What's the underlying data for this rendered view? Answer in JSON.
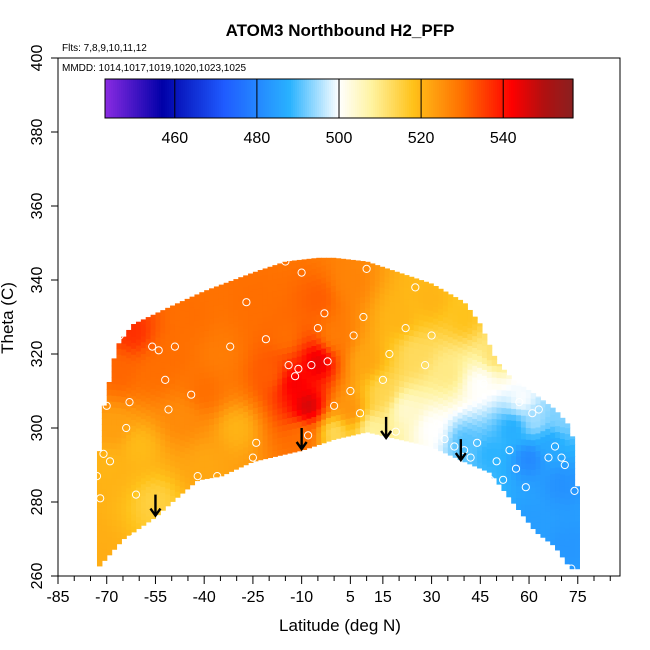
{
  "chart_data": {
    "type": "heatmap",
    "title": "ATOM3 Northbound H2_PFP",
    "flights_note": "Flts: 7,8,9,10,11,12",
    "dates_note": "MMDD: 1014,1017,1019,1020,1023,1025",
    "xlabel": "Latitude (deg N)",
    "ylabel": "Theta (C)",
    "xlim": [
      -85,
      88
    ],
    "ylim": [
      260,
      400
    ],
    "x_tick_labels": [
      "-85",
      "-70",
      "-55",
      "-40",
      "-25",
      "-10",
      "5",
      "15",
      "30",
      "45",
      "60",
      "75"
    ],
    "x_tick_values": [
      -85,
      -70,
      -55,
      -40,
      -25,
      -10,
      5,
      15,
      30,
      45,
      60,
      75
    ],
    "x_minor_ticks": [
      -80,
      -75,
      -65,
      -60,
      -50,
      -45,
      -35,
      -30,
      -20,
      -15,
      -5,
      0,
      10,
      20,
      25,
      35,
      40,
      50,
      55,
      65,
      70,
      80,
      85
    ],
    "y_tick_labels": [
      "260",
      "280",
      "300",
      "320",
      "340",
      "360",
      "380",
      "400"
    ],
    "y_tick_values": [
      260,
      280,
      300,
      320,
      340,
      360,
      380,
      400
    ],
    "colorbar": {
      "range": [
        443,
        557
      ],
      "tick_labels": [
        "460",
        "480",
        "500",
        "520",
        "540"
      ],
      "tick_values": [
        460,
        480,
        500,
        520,
        540
      ],
      "colors": [
        "#8a2be2",
        "#0000a8",
        "#1f5bff",
        "#29b2ff",
        "#ffffff",
        "#fff3a0",
        "#ffc21a",
        "#ff6f00",
        "#ff0000",
        "#b01010",
        "#8a2020"
      ],
      "stops": [
        443,
        457,
        472,
        488,
        500,
        508,
        518,
        530,
        542,
        550,
        557
      ]
    },
    "upper_boundary": [
      [
        -73,
        287
      ],
      [
        -71,
        305
      ],
      [
        -67,
        322
      ],
      [
        -62,
        328
      ],
      [
        -50,
        333
      ],
      [
        -40,
        337
      ],
      [
        -25,
        342
      ],
      [
        -15,
        345
      ],
      [
        -5,
        346
      ],
      [
        0,
        346
      ],
      [
        10,
        345
      ],
      [
        20,
        342
      ],
      [
        30,
        339
      ],
      [
        40,
        334
      ],
      [
        45,
        328
      ],
      [
        50,
        318
      ],
      [
        55,
        313
      ],
      [
        62,
        309
      ],
      [
        68,
        305
      ],
      [
        73,
        300
      ],
      [
        75,
        282
      ],
      [
        75,
        262
      ]
    ],
    "lower_boundary": [
      [
        -73,
        262
      ],
      [
        -65,
        270
      ],
      [
        -55,
        276
      ],
      [
        -50,
        280
      ],
      [
        -42,
        286
      ],
      [
        -35,
        287
      ],
      [
        -25,
        291
      ],
      [
        -10,
        294
      ],
      [
        0,
        297
      ],
      [
        10,
        299
      ],
      [
        20,
        297
      ],
      [
        30,
        295
      ],
      [
        40,
        291
      ],
      [
        48,
        288
      ],
      [
        55,
        280
      ],
      [
        62,
        272
      ],
      [
        68,
        268
      ],
      [
        72,
        263
      ]
    ],
    "field_points": [
      [
        -70,
        290,
        520
      ],
      [
        -68,
        300,
        523
      ],
      [
        -66,
        315,
        531
      ],
      [
        -62,
        326,
        537
      ],
      [
        -60,
        295,
        519
      ],
      [
        -55,
        315,
        530
      ],
      [
        -55,
        280,
        515
      ],
      [
        -50,
        320,
        530
      ],
      [
        -47,
        303,
        526
      ],
      [
        -45,
        330,
        530
      ],
      [
        -40,
        310,
        530
      ],
      [
        -40,
        290,
        522
      ],
      [
        -35,
        320,
        528
      ],
      [
        -30,
        300,
        520
      ],
      [
        -25,
        335,
        530
      ],
      [
        -20,
        315,
        532
      ],
      [
        -15,
        325,
        530
      ],
      [
        -12,
        312,
        543
      ],
      [
        -8,
        306,
        547
      ],
      [
        -5,
        318,
        545
      ],
      [
        -10,
        298,
        530
      ],
      [
        -5,
        335,
        532
      ],
      [
        0,
        325,
        528
      ],
      [
        5,
        340,
        527
      ],
      [
        5,
        305,
        525
      ],
      [
        10,
        318,
        522
      ],
      [
        12,
        300,
        508
      ],
      [
        15,
        310,
        514
      ],
      [
        20,
        330,
        520
      ],
      [
        22,
        305,
        504
      ],
      [
        25,
        320,
        513
      ],
      [
        30,
        335,
        520
      ],
      [
        30,
        300,
        500
      ],
      [
        35,
        315,
        510
      ],
      [
        40,
        296,
        490
      ],
      [
        40,
        330,
        518
      ],
      [
        45,
        312,
        500
      ],
      [
        48,
        293,
        488
      ],
      [
        50,
        320,
        512
      ],
      [
        55,
        300,
        487
      ],
      [
        58,
        308,
        500
      ],
      [
        60,
        292,
        480
      ],
      [
        62,
        302,
        495
      ],
      [
        66,
        296,
        486
      ],
      [
        70,
        285,
        482
      ],
      [
        70,
        303,
        493
      ],
      [
        60,
        275,
        484
      ],
      [
        72,
        268,
        483
      ],
      [
        -72,
        265,
        521
      ],
      [
        0,
        299,
        513
      ]
    ],
    "sample_points": [
      [
        -73,
        287
      ],
      [
        -72,
        281
      ],
      [
        -71,
        293
      ],
      [
        -69,
        291
      ],
      [
        -70,
        306
      ],
      [
        -66,
        325
      ],
      [
        -64,
        300
      ],
      [
        -63,
        307
      ],
      [
        -62,
        270
      ],
      [
        -61,
        282
      ],
      [
        -57,
        272
      ],
      [
        -56,
        322
      ],
      [
        -54,
        321
      ],
      [
        -52,
        313
      ],
      [
        -51,
        305
      ],
      [
        -49,
        322
      ],
      [
        -44,
        309
      ],
      [
        -42,
        287
      ],
      [
        -36,
        287
      ],
      [
        -32,
        322
      ],
      [
        -27,
        334
      ],
      [
        -25,
        292
      ],
      [
        -24,
        296
      ],
      [
        -21,
        324
      ],
      [
        -15,
        345
      ],
      [
        -14,
        317
      ],
      [
        -12,
        314
      ],
      [
        -11,
        316
      ],
      [
        -10,
        342
      ],
      [
        -8,
        298
      ],
      [
        -7,
        317
      ],
      [
        -5,
        327
      ],
      [
        -3,
        331
      ],
      [
        -2,
        318
      ],
      [
        0,
        306
      ],
      [
        5,
        310
      ],
      [
        6,
        325
      ],
      [
        8,
        304
      ],
      [
        9,
        330
      ],
      [
        10,
        343
      ],
      [
        12,
        296
      ],
      [
        15,
        313
      ],
      [
        17,
        320
      ],
      [
        19,
        299
      ],
      [
        22,
        327
      ],
      [
        25,
        338
      ],
      [
        26,
        344
      ],
      [
        28,
        317
      ],
      [
        30,
        325
      ],
      [
        32,
        301
      ],
      [
        34,
        297
      ],
      [
        37,
        295
      ],
      [
        40,
        294
      ],
      [
        42,
        292
      ],
      [
        44,
        296
      ],
      [
        46,
        312
      ],
      [
        48,
        286
      ],
      [
        50,
        291
      ],
      [
        52,
        286
      ],
      [
        54,
        294
      ],
      [
        56,
        289
      ],
      [
        57,
        307
      ],
      [
        59,
        284
      ],
      [
        61,
        304
      ],
      [
        63,
        305
      ],
      [
        66,
        292
      ],
      [
        68,
        295
      ],
      [
        70,
        292
      ],
      [
        71,
        290
      ],
      [
        73,
        262
      ],
      [
        74,
        283
      ]
    ],
    "arrows": [
      [
        -55,
        282
      ],
      [
        -10,
        300
      ],
      [
        16,
        303
      ],
      [
        39,
        297
      ]
    ]
  }
}
